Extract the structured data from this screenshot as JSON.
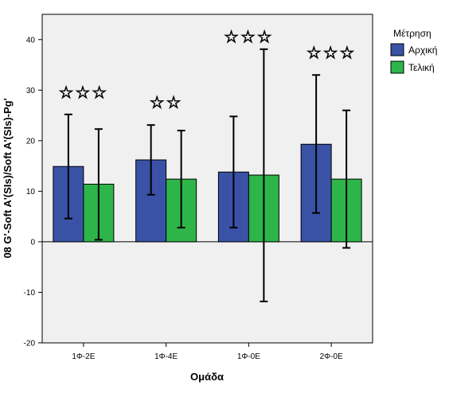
{
  "chart_data": {
    "type": "bar",
    "xlabel": "Ομάδα",
    "ylabel": "08 G'-Soft A'(SIs)/Soft A'(SIs)-Pg'",
    "ylim": [
      -20,
      45
    ],
    "yticks": [
      -20,
      -10,
      0,
      10,
      20,
      30,
      40
    ],
    "grid": false,
    "categories": [
      "1Φ-2Ε",
      "1Φ-4Ε",
      "1Φ-0Ε",
      "2Φ-0Ε"
    ],
    "legend": {
      "title": "Μέτρηση",
      "placement": "right"
    },
    "series": [
      {
        "name": "Αρχική",
        "color": "#3A52A6",
        "values": [
          14.9,
          16.2,
          13.8,
          19.3
        ],
        "error_low": [
          4.6,
          9.3,
          2.8,
          5.7
        ],
        "error_high": [
          25.2,
          23.1,
          24.8,
          33.0
        ]
      },
      {
        "name": "Τελική",
        "color": "#2EB549",
        "values": [
          11.4,
          12.4,
          13.2,
          12.4
        ],
        "error_low": [
          0.4,
          2.8,
          -11.8,
          -1.2
        ],
        "error_high": [
          22.3,
          22.0,
          38.1,
          26.0
        ]
      }
    ],
    "annotations": [
      {
        "category": "1Φ-2Ε",
        "text": "☆☆☆",
        "y": 29.5
      },
      {
        "category": "1Φ-4Ε",
        "text": "☆☆",
        "y": 27.5
      },
      {
        "category": "1Φ-0Ε",
        "text": "☆☆☆",
        "y": 40.5
      },
      {
        "category": "2Φ-0Ε",
        "text": "☆☆☆",
        "y": 37.4
      }
    ]
  }
}
